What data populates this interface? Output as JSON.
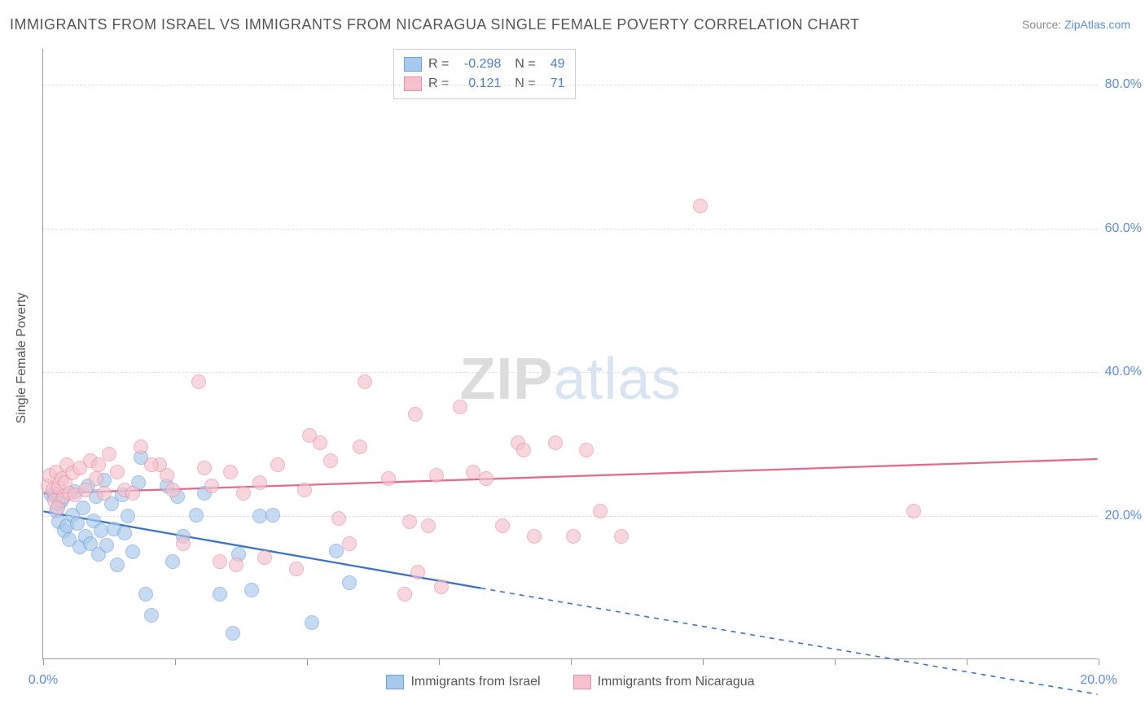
{
  "title": "IMMIGRANTS FROM ISRAEL VS IMMIGRANTS FROM NICARAGUA SINGLE FEMALE POVERTY CORRELATION CHART",
  "source_label": "Source: ",
  "source_link": "ZipAtlas.com",
  "ylabel": "Single Female Poverty",
  "watermark_a": "ZIP",
  "watermark_b": "atlas",
  "chart": {
    "type": "scatter",
    "background_color": "#ffffff",
    "grid_color": "#dddddd",
    "axis_color": "#999999",
    "xlim": [
      0,
      20
    ],
    "ylim": [
      0,
      85
    ],
    "yticks": [
      20,
      40,
      60,
      80
    ],
    "ytick_labels": [
      "20.0%",
      "40.0%",
      "60.0%",
      "80.0%"
    ],
    "xticks": [
      0,
      2.5,
      5,
      7.5,
      10,
      12.5,
      15,
      17.5,
      20
    ],
    "xtick_labels": {
      "0": "0.0%",
      "20": "20.0%"
    },
    "series": [
      {
        "name": "Immigrants from Israel",
        "color_fill": "#a9c9ec",
        "color_stroke": "#6fa3dc",
        "fill_opacity": 0.65,
        "marker_radius": 9,
        "trend": {
          "x1": 0,
          "y1": 20.5,
          "x2": 8.3,
          "y2": 9.8,
          "x_dash_to": 20,
          "y_dash_to": -5,
          "stroke": "#3b74c4",
          "width": 2.3
        },
        "R": "-0.298",
        "N": "49",
        "points": [
          [
            0.15,
            22.8
          ],
          [
            0.2,
            23.0
          ],
          [
            0.25,
            20.5
          ],
          [
            0.3,
            19.0
          ],
          [
            0.3,
            21.5
          ],
          [
            0.35,
            22.0
          ],
          [
            0.4,
            17.8
          ],
          [
            0.45,
            18.5
          ],
          [
            0.5,
            16.5
          ],
          [
            0.55,
            20.0
          ],
          [
            0.6,
            23.2
          ],
          [
            0.65,
            18.8
          ],
          [
            0.7,
            15.5
          ],
          [
            0.75,
            21.0
          ],
          [
            0.8,
            17.0
          ],
          [
            0.85,
            24.0
          ],
          [
            0.9,
            16.0
          ],
          [
            0.95,
            19.2
          ],
          [
            1.0,
            22.5
          ],
          [
            1.05,
            14.5
          ],
          [
            1.1,
            17.8
          ],
          [
            1.15,
            24.8
          ],
          [
            1.2,
            15.8
          ],
          [
            1.3,
            21.5
          ],
          [
            1.35,
            18.0
          ],
          [
            1.4,
            13.0
          ],
          [
            1.5,
            22.8
          ],
          [
            1.55,
            17.5
          ],
          [
            1.6,
            19.8
          ],
          [
            1.7,
            14.8
          ],
          [
            1.8,
            24.5
          ],
          [
            1.85,
            28.0
          ],
          [
            1.95,
            9.0
          ],
          [
            2.05,
            6.0
          ],
          [
            2.35,
            24.0
          ],
          [
            2.45,
            13.5
          ],
          [
            2.55,
            22.5
          ],
          [
            2.65,
            17.0
          ],
          [
            2.9,
            20.0
          ],
          [
            3.05,
            23.0
          ],
          [
            3.35,
            9.0
          ],
          [
            3.6,
            3.5
          ],
          [
            3.7,
            14.5
          ],
          [
            3.95,
            9.5
          ],
          [
            4.1,
            19.8
          ],
          [
            4.35,
            20.0
          ],
          [
            5.1,
            5.0
          ],
          [
            5.55,
            15.0
          ],
          [
            5.8,
            10.5
          ]
        ]
      },
      {
        "name": "Immigrants from Nicaragua",
        "color_fill": "#f4c1cd",
        "color_stroke": "#e78fa5",
        "fill_opacity": 0.65,
        "marker_radius": 9,
        "trend": {
          "x1": 0,
          "y1": 23.0,
          "x2": 20,
          "y2": 27.8,
          "stroke": "#e46a8c",
          "width": 2.3
        },
        "R": "0.121",
        "N": "71",
        "points": [
          [
            0.1,
            24.0
          ],
          [
            0.12,
            25.5
          ],
          [
            0.18,
            23.5
          ],
          [
            0.22,
            22.0
          ],
          [
            0.25,
            26.0
          ],
          [
            0.28,
            21.0
          ],
          [
            0.3,
            23.8
          ],
          [
            0.35,
            25.0
          ],
          [
            0.38,
            22.5
          ],
          [
            0.42,
            24.5
          ],
          [
            0.45,
            27.0
          ],
          [
            0.5,
            23.0
          ],
          [
            0.55,
            25.8
          ],
          [
            0.6,
            22.8
          ],
          [
            0.7,
            26.5
          ],
          [
            0.8,
            23.5
          ],
          [
            0.9,
            27.5
          ],
          [
            1.0,
            25.0
          ],
          [
            1.05,
            27.0
          ],
          [
            1.15,
            23.0
          ],
          [
            1.25,
            28.5
          ],
          [
            1.4,
            26.0
          ],
          [
            1.55,
            23.5
          ],
          [
            1.85,
            29.5
          ],
          [
            2.2,
            27.0
          ],
          [
            2.45,
            23.5
          ],
          [
            2.65,
            16.0
          ],
          [
            2.95,
            38.5
          ],
          [
            3.05,
            26.5
          ],
          [
            3.2,
            24.0
          ],
          [
            3.35,
            13.5
          ],
          [
            3.65,
            13.0
          ],
          [
            3.8,
            23.0
          ],
          [
            4.1,
            24.5
          ],
          [
            4.45,
            27.0
          ],
          [
            4.8,
            12.5
          ],
          [
            4.95,
            23.5
          ],
          [
            5.25,
            30.0
          ],
          [
            5.45,
            27.5
          ],
          [
            5.6,
            19.5
          ],
          [
            5.8,
            16.0
          ],
          [
            6.0,
            29.5
          ],
          [
            6.1,
            38.5
          ],
          [
            6.55,
            25.0
          ],
          [
            6.85,
            9.0
          ],
          [
            6.95,
            19.0
          ],
          [
            7.05,
            34.0
          ],
          [
            7.1,
            12.0
          ],
          [
            7.3,
            18.5
          ],
          [
            7.45,
            25.5
          ],
          [
            7.55,
            10.0
          ],
          [
            7.9,
            35.0
          ],
          [
            8.15,
            26.0
          ],
          [
            8.4,
            25.0
          ],
          [
            8.7,
            18.5
          ],
          [
            9.0,
            30.0
          ],
          [
            9.1,
            29.0
          ],
          [
            9.3,
            17.0
          ],
          [
            9.7,
            30.0
          ],
          [
            10.05,
            17.0
          ],
          [
            10.3,
            29.0
          ],
          [
            10.55,
            20.5
          ],
          [
            10.95,
            17.0
          ],
          [
            12.45,
            63.0
          ],
          [
            16.5,
            20.5
          ],
          [
            2.05,
            27.0
          ],
          [
            2.35,
            25.5
          ],
          [
            3.55,
            26.0
          ],
          [
            4.2,
            14.0
          ],
          [
            5.05,
            31.0
          ],
          [
            1.7,
            23.0
          ]
        ]
      }
    ],
    "legend": {
      "items": [
        {
          "label": "Immigrants from Israel",
          "fill": "#a9c9ec",
          "stroke": "#6fa3dc"
        },
        {
          "label": "Immigrants from Nicaragua",
          "fill": "#f4c1cd",
          "stroke": "#e78fa5"
        }
      ]
    }
  }
}
